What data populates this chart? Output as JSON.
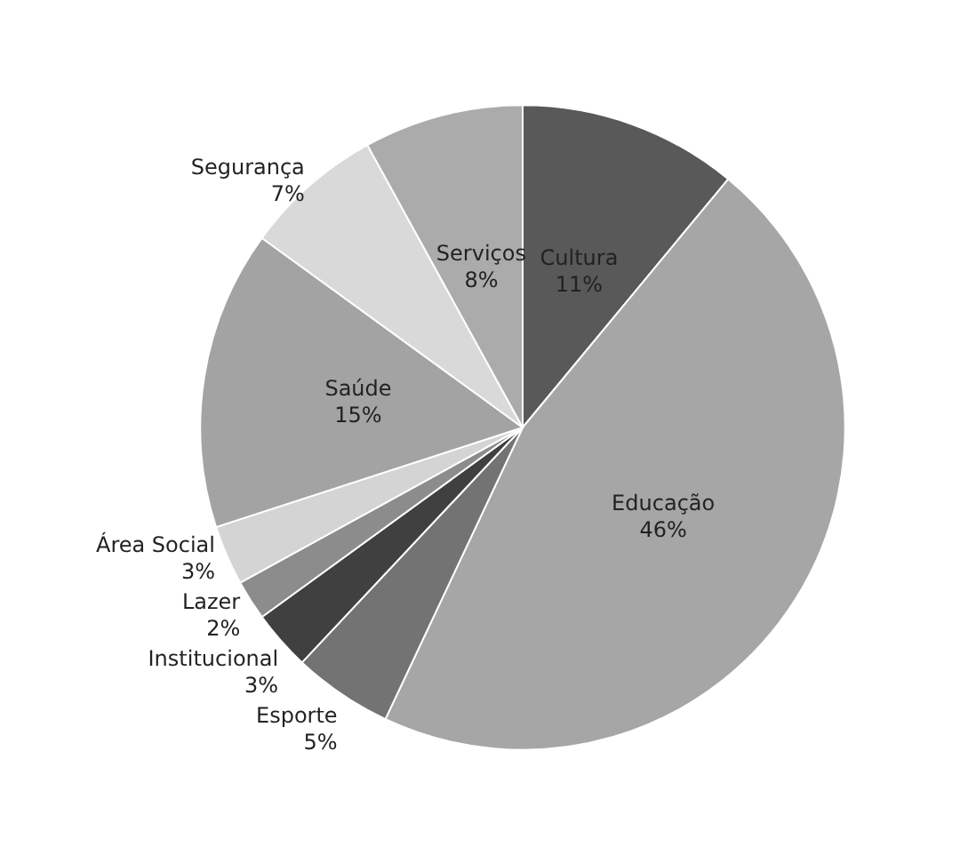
{
  "chart_data": {
    "type": "pie",
    "categories": [
      "Cultura",
      "Educação",
      "Esporte",
      "Institucional",
      "Lazer",
      "Área Social",
      "Saúde",
      "Segurança",
      "Serviços"
    ],
    "values": [
      11,
      46,
      5,
      3,
      2,
      3,
      15,
      7,
      8
    ],
    "colors": [
      "#595959",
      "#a6a6a6",
      "#737373",
      "#404040",
      "#8c8c8c",
      "#d4d4d4",
      "#a3a3a3",
      "#d9d9d9",
      "#ababab"
    ],
    "value_labels": [
      "11%",
      "46%",
      "5%",
      "3%",
      "2%",
      "3%",
      "15%",
      "7%",
      "8%"
    ],
    "legend": false
  }
}
